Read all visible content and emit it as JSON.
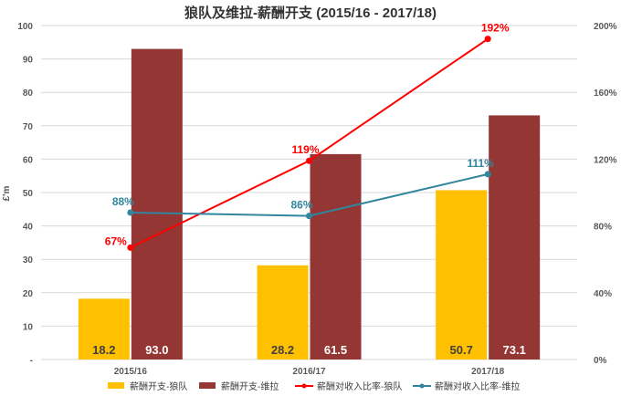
{
  "chart_data": {
    "type": "bar",
    "title": "狼队及维拉-薪酬开支 (2015/16 - 2017/18)",
    "ylabel": "£'m",
    "ylim": [
      0,
      100
    ],
    "y2lim": [
      0,
      200
    ],
    "yticks": [
      "-",
      "10",
      "20",
      "30",
      "40",
      "50",
      "60",
      "70",
      "80",
      "90",
      "100"
    ],
    "y2ticks": [
      "0%",
      "40%",
      "80%",
      "120%",
      "160%",
      "200%"
    ],
    "categories": [
      "2015/16",
      "2016/17",
      "2017/18"
    ],
    "grid": true,
    "legend_position": "bottom",
    "series": [
      {
        "name": "薪酬开支-狼队",
        "type": "bar",
        "axis": "left",
        "color": "#FFC000",
        "values": [
          18.2,
          28.2,
          50.7
        ],
        "labels": [
          "18.2",
          "28.2",
          "50.7"
        ]
      },
      {
        "name": "薪酬开支-维拉",
        "type": "bar",
        "axis": "left",
        "color": "#943634",
        "values": [
          93.0,
          61.5,
          73.1
        ],
        "labels": [
          "93.0",
          "61.5",
          "73.1"
        ]
      },
      {
        "name": "薪酬对收入比率-狼队",
        "type": "line",
        "axis": "right",
        "color": "#FF0000",
        "values": [
          67,
          119,
          192
        ],
        "labels": [
          "67%",
          "119%",
          "192%"
        ]
      },
      {
        "name": "薪酬对收入比率-维拉",
        "type": "line",
        "axis": "right",
        "color": "#31859C",
        "values": [
          88,
          86,
          111
        ],
        "labels": [
          "88%",
          "86%",
          "111%"
        ]
      }
    ]
  }
}
